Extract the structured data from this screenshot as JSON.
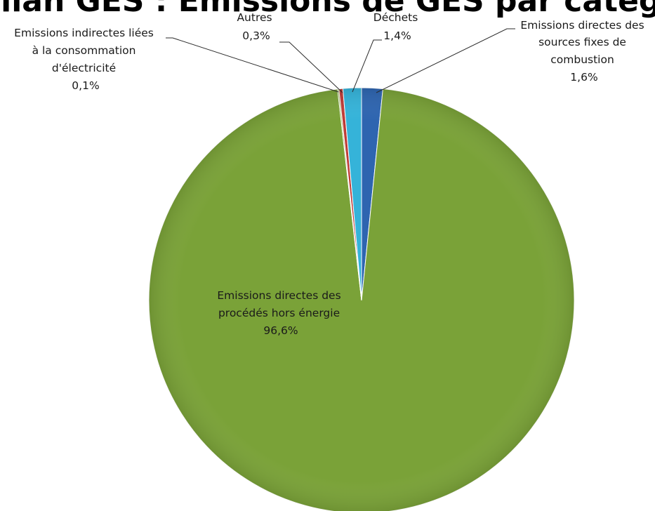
{
  "chart_data": {
    "type": "pie",
    "title": "Bilan GES : Emissions de GES par catégori",
    "slices": [
      {
        "name": "Emissions directes des sources fixes de combustion",
        "value": 1.6,
        "label": "1,6%",
        "color": "#2e65b0"
      },
      {
        "name": "Emissions directes des procédés hors énergie",
        "value": 96.6,
        "label": "96,6%",
        "color": "#7aa238"
      },
      {
        "name": "Emissions indirectes liées à la consommation d'électricité",
        "value": 0.1,
        "label": "0,1%",
        "color": "#8faa40"
      },
      {
        "name": "Autres",
        "value": 0.3,
        "label": "0,3%",
        "color": "#bf3b37"
      },
      {
        "name": "Déchets",
        "value": 1.4,
        "label": "1,4%",
        "color": "#35b3d9"
      }
    ],
    "legend": "none"
  },
  "labels": {
    "combustion": [
      "Emissions directes des",
      "sources fixes de",
      "combustion",
      "1,6%"
    ],
    "procedes": [
      "Emissions directes des",
      "procédés hors énergie",
      "96,6%"
    ],
    "electricite": [
      "Emissions indirectes liées",
      "à la consommation",
      "d'électricité",
      "0,1%"
    ],
    "autres": [
      "Autres",
      "0,3%"
    ],
    "dechets": [
      "Déchets",
      "1,4%"
    ]
  }
}
